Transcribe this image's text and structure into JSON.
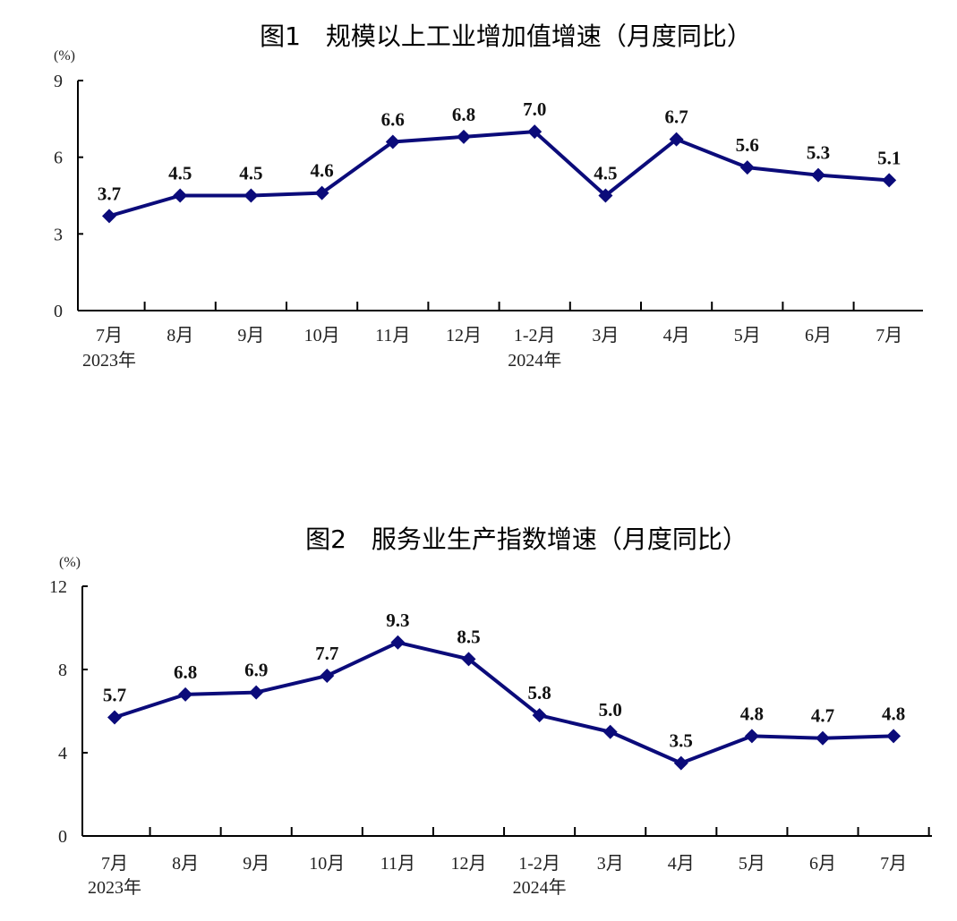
{
  "colors": {
    "series": "#0b0b7a",
    "axis": "#000000"
  },
  "chart_data": [
    {
      "type": "line",
      "title": "图1　规模以上工业增加值增速（月度同比）",
      "unit": "(%)",
      "categories": [
        "7月",
        "8月",
        "9月",
        "10月",
        "11月",
        "12月",
        "1-2月",
        "3月",
        "4月",
        "5月",
        "6月",
        "7月"
      ],
      "year_labels": [
        {
          "index": 0,
          "text": "2023年"
        },
        {
          "index": 6,
          "text": "2024年"
        }
      ],
      "series": [
        {
          "values": [
            3.7,
            4.5,
            4.5,
            4.6,
            6.6,
            6.8,
            7.0,
            4.5,
            6.7,
            5.6,
            5.3,
            5.1
          ]
        }
      ],
      "data_labels": [
        "3.7",
        "4.5",
        "4.5",
        "4.6",
        "6.6",
        "6.8",
        "7.0",
        "4.5",
        "6.7",
        "5.6",
        "5.3",
        "5.1"
      ],
      "ylim": [
        0,
        9
      ],
      "yticks": [
        0,
        3,
        6,
        9
      ],
      "grid": false
    },
    {
      "type": "line",
      "title": "图2　服务业生产指数增速（月度同比）",
      "unit": "(%)",
      "categories": [
        "7月",
        "8月",
        "9月",
        "10月",
        "11月",
        "12月",
        "1-2月",
        "3月",
        "4月",
        "5月",
        "6月",
        "7月"
      ],
      "year_labels": [
        {
          "index": 0,
          "text": "2023年"
        },
        {
          "index": 6,
          "text": "2024年"
        }
      ],
      "series": [
        {
          "values": [
            5.7,
            6.8,
            6.9,
            7.7,
            9.3,
            8.5,
            5.8,
            5.0,
            3.5,
            4.8,
            4.7,
            4.8
          ]
        }
      ],
      "data_labels": [
        "5.7",
        "6.8",
        "6.9",
        "7.7",
        "9.3",
        "8.5",
        "5.8",
        "5.0",
        "3.5",
        "4.8",
        "4.7",
        "4.8"
      ],
      "ylim": [
        0,
        12
      ],
      "yticks": [
        0,
        4,
        8,
        12
      ],
      "grid": false
    }
  ]
}
